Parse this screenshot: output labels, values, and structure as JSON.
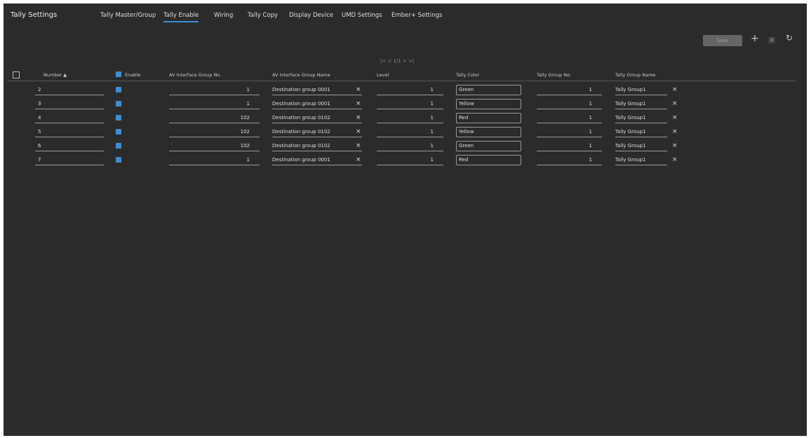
{
  "header": {
    "title": "Tally Settings",
    "tabs": [
      "Tally Master/Group",
      "Tally Enable",
      "Wiring",
      "Tally Copy",
      "Display Device",
      "UMD Settings",
      "Ember+ Settings"
    ],
    "active_tab": 1,
    "save": "Save"
  },
  "pagination": "1/1",
  "table": {
    "columns": [
      "Number",
      "Enable",
      "AV Interface Group No.",
      "AV Interface Group Name",
      "Level",
      "Tally Color",
      "Tally Group No.",
      "Tally Group Name"
    ],
    "rows": [
      {
        "number": 2,
        "enable": true,
        "av_group_no": 1,
        "av_group_name": "Destination group 0001",
        "level": 1,
        "tally_color": "Green",
        "swatch": "#3ccf3c",
        "tally_group_no": 1,
        "tally_group_name": "Tally Group1"
      },
      {
        "number": 3,
        "enable": true,
        "av_group_no": 1,
        "av_group_name": "Destination group 0001",
        "level": 1,
        "tally_color": "Yellow",
        "swatch": "#f2f23a",
        "tally_group_no": 1,
        "tally_group_name": "Tally Group1"
      },
      {
        "number": 4,
        "enable": true,
        "av_group_no": 102,
        "av_group_name": "Destination group 0102",
        "level": 1,
        "tally_color": "Red",
        "swatch": "#e01515",
        "tally_group_no": 1,
        "tally_group_name": "Tally Group1"
      },
      {
        "number": 5,
        "enable": true,
        "av_group_no": 102,
        "av_group_name": "Destination group 0102",
        "level": 1,
        "tally_color": "Yellow",
        "swatch": "#f2f23a",
        "tally_group_no": 1,
        "tally_group_name": "Tally Group1"
      },
      {
        "number": 6,
        "enable": true,
        "av_group_no": 102,
        "av_group_name": "Destination group 0102",
        "level": 1,
        "tally_color": "Green",
        "swatch": "#3ccf3c",
        "tally_group_no": 1,
        "tally_group_name": "Tally Group1"
      },
      {
        "number": 7,
        "enable": true,
        "av_group_no": 1,
        "av_group_name": "Destination group 0001",
        "level": 1,
        "tally_color": "Red",
        "swatch": "#e01515",
        "tally_group_no": 1,
        "tally_group_name": "Tally Group1"
      }
    ]
  }
}
